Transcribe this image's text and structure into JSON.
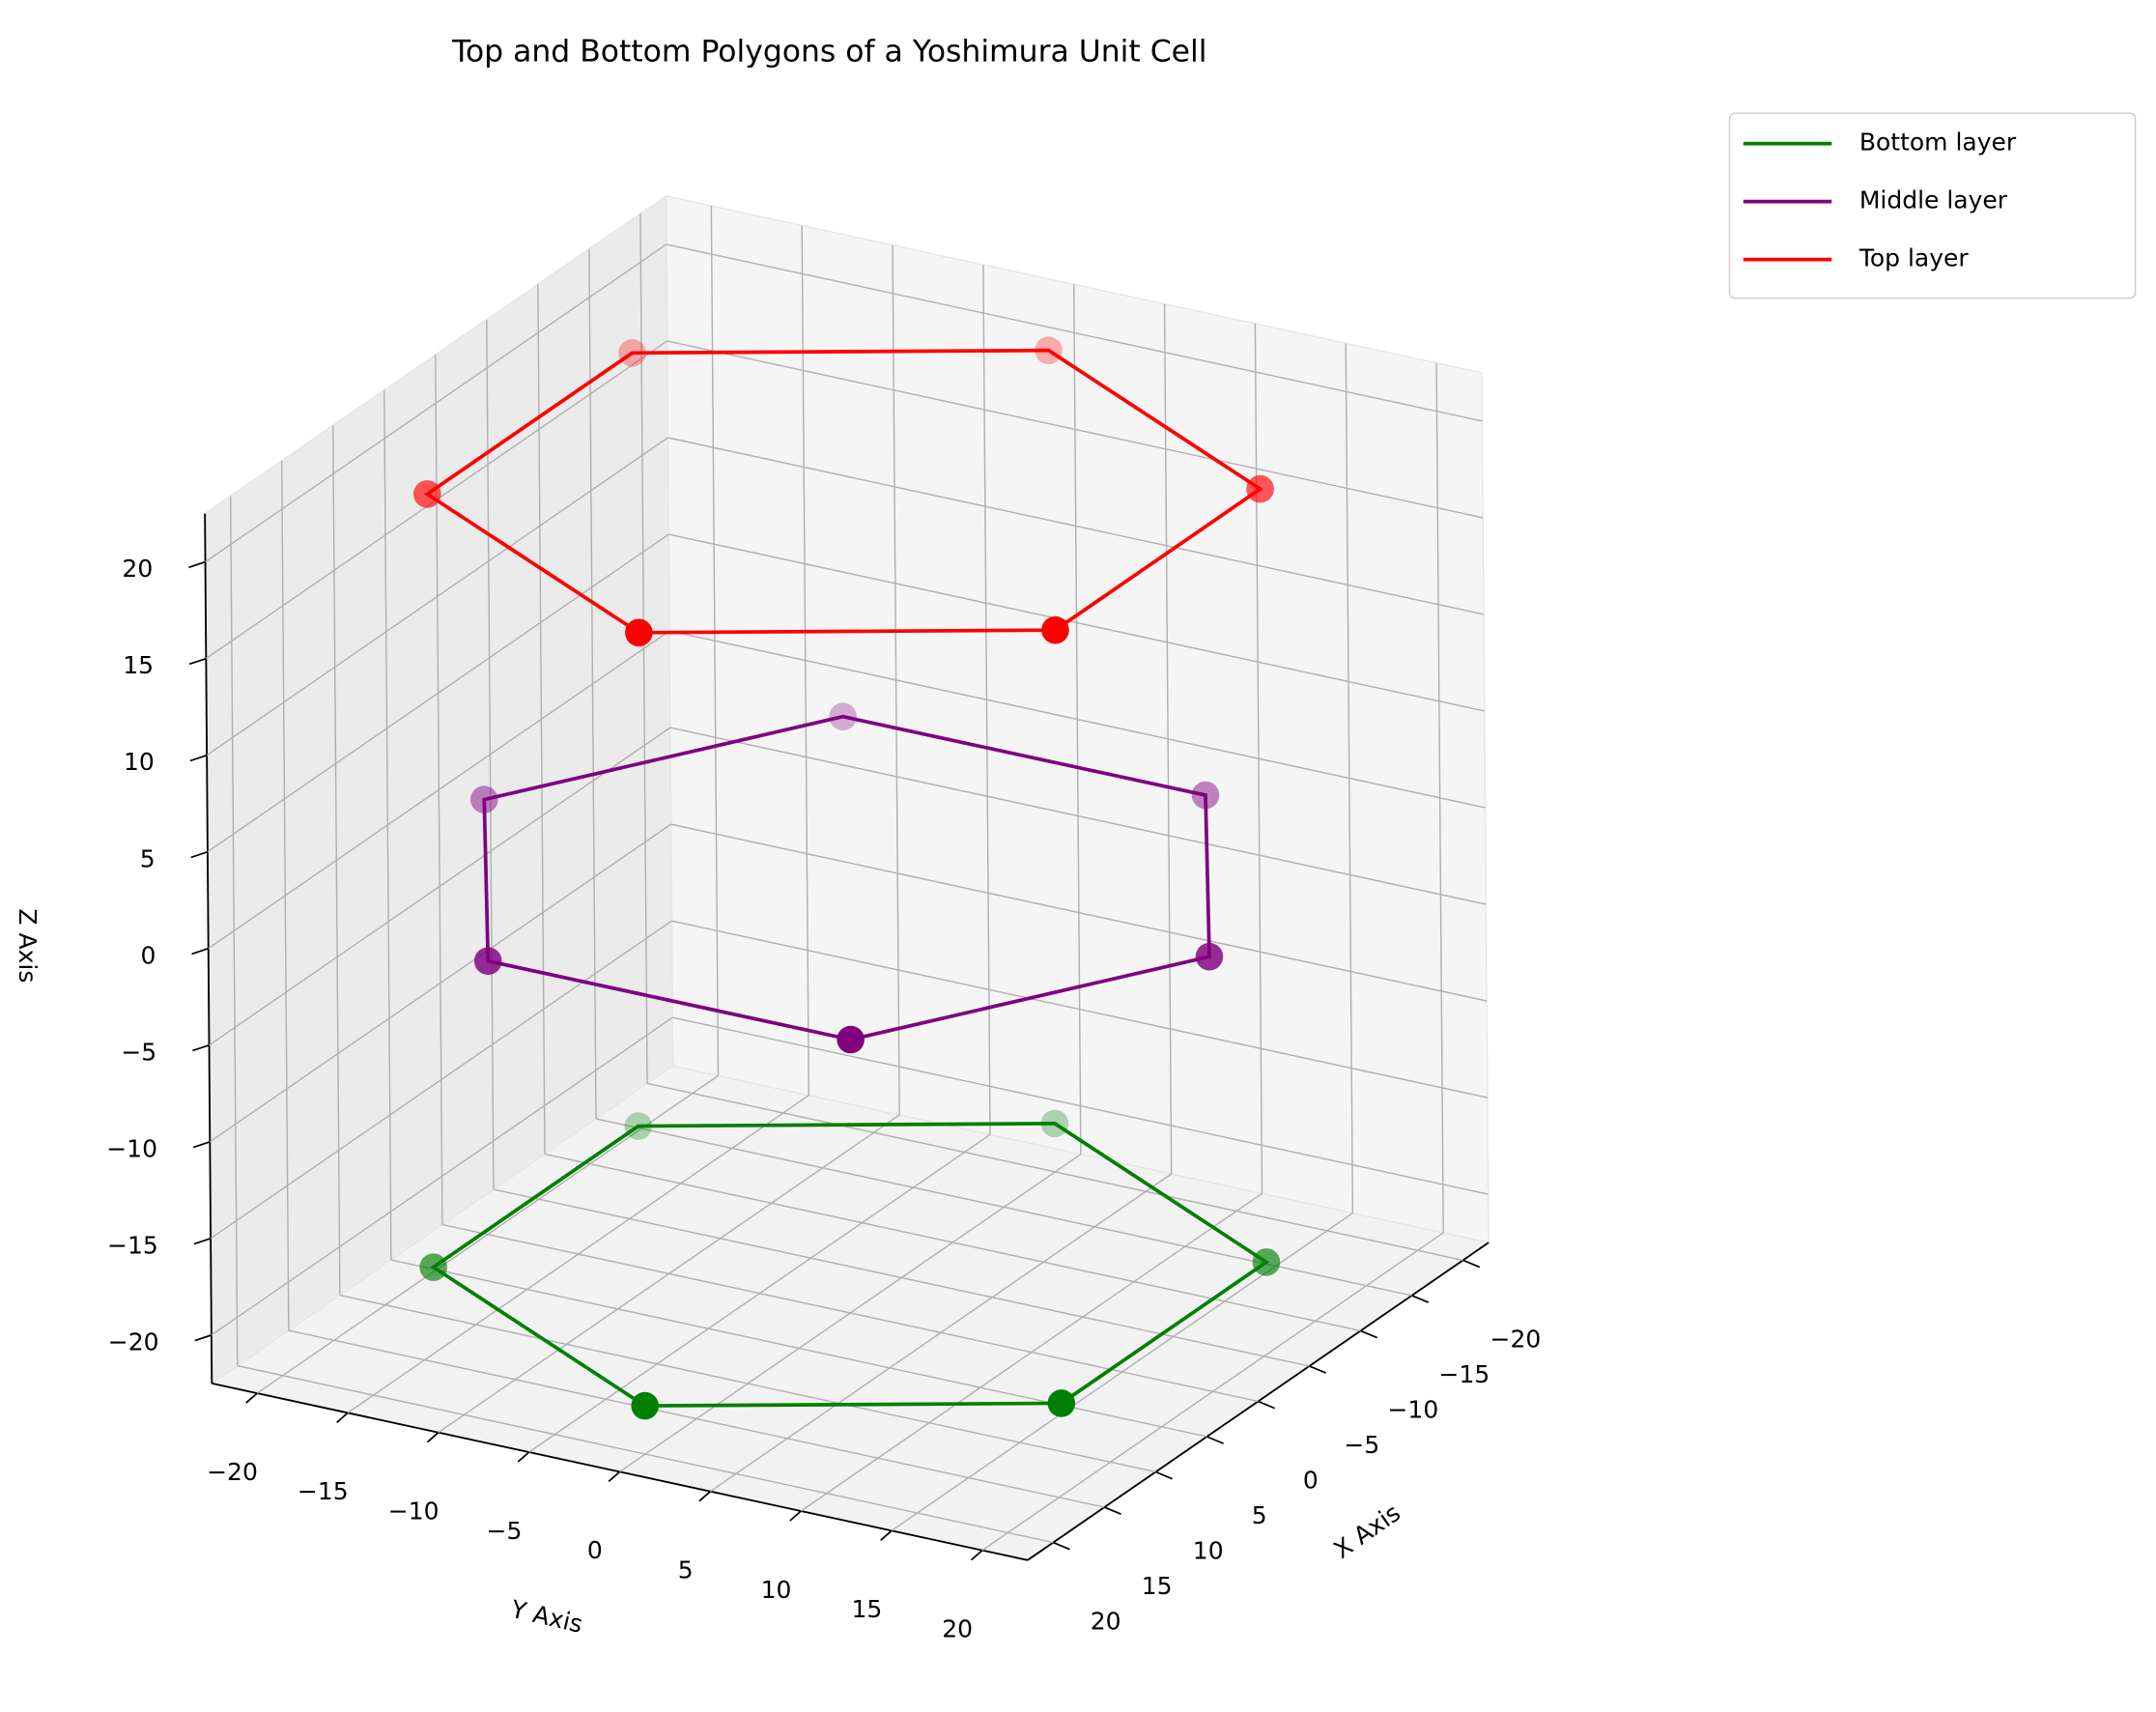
{
  "chart_data": {
    "type": "line3d",
    "title": "Top and Bottom Polygons of a Yoshimura Unit Cell",
    "xlabel": "X Axis",
    "ylabel": "Y Axis",
    "zlabel": "Z Axis",
    "xlim": [
      -22.5,
      22.5
    ],
    "ylim": [
      -22.5,
      22.5
    ],
    "zlim": [
      -22.5,
      22.5
    ],
    "xticks": [
      {
        "value": -20,
        "label": "−20"
      },
      {
        "value": -15,
        "label": "−15"
      },
      {
        "value": -10,
        "label": "−10"
      },
      {
        "value": -5,
        "label": "−5"
      },
      0,
      5,
      10,
      15,
      20
    ],
    "yticks": [
      {
        "value": -20,
        "label": "−20"
      },
      {
        "value": -15,
        "label": "−15"
      },
      {
        "value": -10,
        "label": "−10"
      },
      {
        "value": -5,
        "label": "−5"
      },
      0,
      5,
      10,
      15,
      20
    ],
    "zticks": [
      {
        "value": -20,
        "label": "−20"
      },
      {
        "value": -15,
        "label": "−15"
      },
      {
        "value": -10,
        "label": "−10"
      },
      {
        "value": -5,
        "label": "−5"
      },
      0,
      5,
      10,
      15,
      20
    ],
    "grid": true,
    "legend": "upper right",
    "series": [
      {
        "name": "Bottom layer",
        "color": "#008000",
        "x": [
          20,
          10,
          -10,
          -20,
          -10,
          10
        ],
        "y": [
          0,
          17.32,
          17.32,
          0,
          -17.32,
          -17.32
        ],
        "z": [
          -20,
          -20,
          -20,
          -20,
          -20,
          -20
        ]
      },
      {
        "name": "Middle layer",
        "color": "#800080",
        "x": [
          17.32,
          0,
          -17.32,
          -17.32,
          0,
          17.32
        ],
        "y": [
          10,
          20,
          10,
          -10,
          -20,
          -10
        ],
        "z": [
          0,
          0,
          0,
          0,
          0,
          0
        ]
      },
      {
        "name": "Top layer",
        "color": "#ff0000",
        "x": [
          20,
          10,
          -10,
          -20,
          -10,
          10
        ],
        "y": [
          0,
          17.32,
          17.32,
          0,
          -17.32,
          -17.32
        ],
        "z": [
          20,
          20,
          20,
          20,
          20,
          20
        ]
      }
    ]
  }
}
